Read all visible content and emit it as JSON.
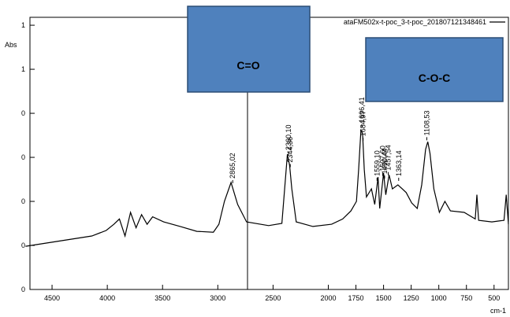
{
  "chart_data": {
    "type": "line",
    "y_label": "Abs",
    "x_label": "cm-1",
    "xlim": [
      4700,
      370
    ],
    "ylim": [
      0,
      1.236
    ],
    "xticks": [
      4500,
      4000,
      3500,
      3000,
      2500,
      2000,
      1750,
      1500,
      1250,
      1000,
      750,
      500
    ],
    "yticks": [
      {
        "value": 1.2,
        "label": "1"
      },
      {
        "value": 1.0,
        "label": "1"
      },
      {
        "value": 0.8,
        "label": "0"
      },
      {
        "value": 0.6,
        "label": "0"
      },
      {
        "value": 0.4,
        "label": "0"
      },
      {
        "value": 0.2,
        "label": "0"
      },
      {
        "value": 0.0,
        "label": "0"
      }
    ],
    "x": [
      4740,
      4140,
      4010,
      3940,
      3890,
      3840,
      3790,
      3740,
      3690,
      3640,
      3590,
      3490,
      3340,
      3190,
      3040,
      2990,
      2940,
      2880,
      2820,
      2740,
      2540,
      2420,
      2370,
      2350,
      2330,
      2290,
      2140,
      1970,
      1870,
      1795,
      1745,
      1725,
      1705,
      1690,
      1675,
      1655,
      1610,
      1580,
      1550,
      1535,
      1500,
      1480,
      1450,
      1420,
      1370,
      1295,
      1245,
      1195,
      1155,
      1120,
      1100,
      1080,
      1045,
      995,
      945,
      895,
      770,
      670,
      655,
      640,
      520,
      410,
      390,
      370
    ],
    "series": [
      {
        "name": "ataFM502x-t-poc_3-t-poc_201807121348461",
        "color": "#000000",
        "values": [
          0.196,
          0.243,
          0.268,
          0.296,
          0.32,
          0.243,
          0.35,
          0.28,
          0.34,
          0.296,
          0.33,
          0.307,
          0.286,
          0.264,
          0.26,
          0.296,
          0.4,
          0.486,
          0.386,
          0.307,
          0.29,
          0.3,
          0.614,
          0.564,
          0.457,
          0.307,
          0.286,
          0.296,
          0.32,
          0.357,
          0.4,
          0.546,
          0.725,
          0.707,
          0.546,
          0.42,
          0.457,
          0.386,
          0.51,
          0.368,
          0.529,
          0.43,
          0.52,
          0.457,
          0.475,
          0.44,
          0.393,
          0.368,
          0.475,
          0.636,
          0.671,
          0.618,
          0.457,
          0.35,
          0.4,
          0.357,
          0.35,
          0.32,
          0.43,
          0.314,
          0.307,
          0.314,
          0.43,
          0.296
        ]
      }
    ],
    "peaks": [
      {
        "value": 2865.02,
        "label": "2865,02"
      },
      {
        "value": 2360.1,
        "label": "2360,10"
      },
      {
        "value": 2344.36,
        "label": "2344,36"
      },
      {
        "value": 1696.41,
        "label": "1696,41"
      },
      {
        "value": 1684.97,
        "label": "1684,97"
      },
      {
        "value": 1559.1,
        "label": "1559,10"
      },
      {
        "value": 1507.6,
        "label": "1507,60"
      },
      {
        "value": 1490.44,
        "label": "1490,44"
      },
      {
        "value": 1457.54,
        "label": "1457,54"
      },
      {
        "value": 1363.14,
        "label": "1363,14"
      },
      {
        "value": 1108.53,
        "label": "1108,53"
      }
    ],
    "annotations": [
      "C=O",
      "C-O-C"
    ]
  }
}
